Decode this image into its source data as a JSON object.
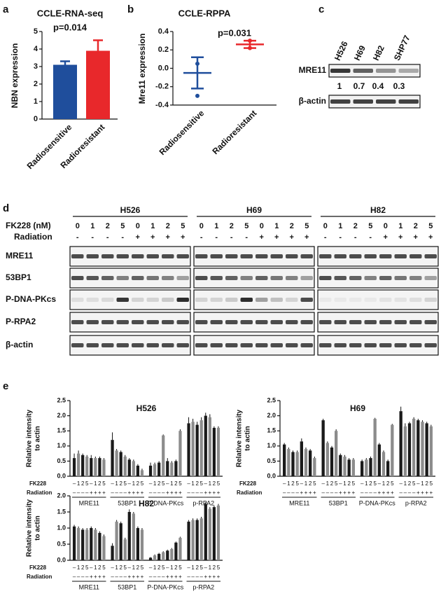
{
  "panel_labels": [
    "a",
    "b",
    "c",
    "d",
    "e"
  ],
  "chart_data": [
    {
      "type": "bar",
      "title": "CCLE-RNA-seq",
      "annotation": "p=0.014",
      "y_label": "NBN expression",
      "categories": [
        "Radiosensitive",
        "Radioresistant"
      ],
      "values": [
        3.1,
        3.9
      ],
      "errors": [
        0.2,
        0.6
      ],
      "colors": [
        "#1f4e9c",
        "#e8282b"
      ],
      "ylim": [
        0,
        5
      ],
      "yticks": [
        0,
        1,
        2,
        3,
        4,
        5
      ]
    },
    {
      "type": "dot",
      "title": "CCLE-RPPA",
      "annotation": "p=0.031",
      "y_label": "Mre11 expression",
      "categories": [
        "Radiosensitive",
        "Radioresistant"
      ],
      "means": [
        -0.05,
        0.26
      ],
      "errors": [
        0.17,
        0.04
      ],
      "points": [
        [
          0.05,
          -0.3
        ],
        [
          0.3,
          0.22
        ]
      ],
      "colors": [
        "#1f4e9c",
        "#e8282b"
      ],
      "ylim": [
        -0.4,
        0.4
      ],
      "yticks": [
        -0.4,
        -0.2,
        {
          "value": 0,
          "label": "0.0"
        },
        0.2,
        0.4
      ]
    },
    {
      "type": "grouped_bar",
      "title": "H526",
      "y_label": [
        "Relative intensity",
        "to actin"
      ],
      "groups": [
        "MRE11",
        "53BP1",
        "P-DNA-PKcs",
        "p-RPA2"
      ],
      "fk228_label": "FK228",
      "radiation_label": "Radiation",
      "fk228": [
        "–",
        1,
        2,
        5,
        "–",
        1,
        2,
        5
      ],
      "radiation": [
        "–",
        "–",
        "–",
        "–",
        "+",
        "+",
        "+",
        "+"
      ],
      "colors": [
        "#1a1a1a",
        "#8c8c8c",
        "#1a1a1a",
        "#8c8c8c",
        "#1a1a1a",
        "#8c8c8c",
        "#1a1a1a",
        "#8c8c8c"
      ],
      "values": [
        [
          0.6,
          0.75,
          0.7,
          0.65,
          0.6,
          0.6,
          0.6,
          0.55
        ],
        [
          1.2,
          0.85,
          0.8,
          0.65,
          0.55,
          0.5,
          0.35,
          0.2
        ],
        [
          0.35,
          0.4,
          0.45,
          1.35,
          0.5,
          0.45,
          0.5,
          1.5
        ],
        [
          1.75,
          1.8,
          1.7,
          1.85,
          2.0,
          1.95,
          1.6,
          1.6
        ]
      ],
      "errors": [
        [
          0.15,
          0.1,
          0.05,
          0.05,
          0.1,
          0.05,
          0.05,
          0.05
        ],
        [
          0.25,
          0.05,
          0.05,
          0.05,
          0.05,
          0.05,
          0.05,
          0.05
        ],
        [
          0.1,
          0.05,
          0.05,
          0.03,
          0.1,
          0.05,
          0.05,
          0.05
        ],
        [
          0.2,
          0.1,
          0.1,
          0.1,
          0.1,
          0.1,
          0.05,
          0.05
        ]
      ],
      "ylim": [
        0,
        2.5
      ],
      "yticks": [
        {
          "value": 0,
          "label": "0.0"
        },
        0.5,
        {
          "value": 1,
          "label": "1.0"
        },
        1.5,
        {
          "value": 2,
          "label": "2.0"
        },
        2.5
      ]
    },
    {
      "type": "grouped_bar",
      "title": "H69",
      "y_label": [
        "Relative intensity",
        "to actin"
      ],
      "groups": [
        "MRE11",
        "53BP1",
        "P-DNA-PKcs",
        "p-RPA2"
      ],
      "fk228_label": "FK228",
      "radiation_label": "Radiation",
      "fk228": [
        "–",
        1,
        2,
        5,
        "–",
        1,
        2,
        5
      ],
      "radiation": [
        "–",
        "–",
        "–",
        "–",
        "+",
        "+",
        "+",
        "+"
      ],
      "colors": [
        "#1a1a1a",
        "#8c8c8c",
        "#1a1a1a",
        "#8c8c8c",
        "#1a1a1a",
        "#8c8c8c",
        "#1a1a1a",
        "#8c8c8c"
      ],
      "values": [
        [
          1.05,
          0.9,
          0.8,
          0.8,
          1.15,
          0.9,
          0.85,
          0.6
        ],
        [
          1.85,
          1.1,
          0.95,
          1.5,
          0.7,
          0.65,
          0.55,
          0.55
        ],
        [
          0.5,
          0.55,
          0.6,
          1.9,
          1.05,
          0.8,
          0.5,
          1.7
        ],
        [
          2.15,
          1.65,
          1.75,
          1.9,
          1.85,
          1.8,
          1.75,
          1.65
        ]
      ],
      "errors": [
        [
          0.05,
          0.05,
          0.05,
          0.05,
          0.1,
          0.05,
          0.05,
          0.05
        ],
        [
          0.05,
          0.05,
          0.05,
          0.05,
          0.05,
          0.05,
          0.05,
          0.05
        ],
        [
          0.05,
          0.05,
          0.05,
          0.03,
          0.05,
          0.05,
          0.05,
          0.03
        ],
        [
          0.15,
          0.1,
          0.05,
          0.05,
          0.05,
          0.05,
          0.05,
          0.05
        ]
      ],
      "ylim": [
        0,
        2.5
      ],
      "yticks": [
        {
          "value": 0,
          "label": "0.0"
        },
        0.5,
        {
          "value": 1,
          "label": "1.0"
        },
        1.5,
        {
          "value": 2,
          "label": "2.0"
        },
        2.5
      ]
    },
    {
      "type": "grouped_bar",
      "title": "H82",
      "y_label": [
        "Relative intensity",
        "to actin"
      ],
      "groups": [
        "MRE11",
        "53BP1",
        "P-DNA-PKcs",
        "p-RPA2"
      ],
      "fk228_label": "FK228",
      "radiation_label": "Radiation",
      "fk228": [
        "–",
        1,
        2,
        5,
        "–",
        1,
        2,
        5
      ],
      "radiation": [
        "–",
        "–",
        "–",
        "–",
        "+",
        "+",
        "+",
        "+"
      ],
      "colors": [
        "#1a1a1a",
        "#8c8c8c",
        "#1a1a1a",
        "#8c8c8c",
        "#1a1a1a",
        "#8c8c8c",
        "#1a1a1a",
        "#8c8c8c"
      ],
      "values": [
        [
          1.05,
          1.0,
          0.95,
          0.95,
          1.0,
          0.95,
          0.85,
          0.75
        ],
        [
          0.45,
          1.2,
          1.15,
          0.65,
          1.5,
          1.45,
          1.0,
          0.95
        ],
        [
          0.08,
          0.15,
          0.2,
          0.25,
          0.3,
          0.35,
          0.55,
          0.7
        ],
        [
          1.2,
          1.25,
          1.25,
          1.3,
          1.75,
          1.6,
          1.65,
          1.7
        ]
      ],
      "errors": [
        [
          0.05,
          0.05,
          0.05,
          0.05,
          0.05,
          0.05,
          0.05,
          0.05
        ],
        [
          0.08,
          0.05,
          0.05,
          0.05,
          0.08,
          0.05,
          0.05,
          0.05
        ],
        [
          0.02,
          0.03,
          0.03,
          0.03,
          0.03,
          0.03,
          0.03,
          0.03
        ],
        [
          0.05,
          0.05,
          0.05,
          0.05,
          0.05,
          0.05,
          0.05,
          0.05
        ]
      ],
      "ylim": [
        0,
        2.0
      ],
      "yticks": [
        {
          "value": 0,
          "label": "0.0"
        },
        0.5,
        {
          "value": 1,
          "label": "1.0"
        },
        1.5,
        {
          "value": 2,
          "label": "2.0"
        }
      ]
    }
  ],
  "blot_c": {
    "lanes": [
      "H526",
      "H69",
      "H82",
      "SHP77"
    ],
    "rows": [
      "MRE11",
      "β-actin"
    ],
    "quantification": [
      1,
      0.7,
      0.4,
      0.3
    ]
  },
  "blot_d": {
    "groups": [
      "H526",
      "H69",
      "H82"
    ],
    "fk228_label": "FK228 (nM)",
    "fk228": [
      0,
      1,
      2,
      5,
      0,
      1,
      2,
      5
    ],
    "radiation_label": "Radiation",
    "radiation": [
      "-",
      "-",
      "-",
      "-",
      "+",
      "+",
      "+",
      "+"
    ],
    "rows": [
      "MRE11",
      "53BP1",
      "P-DNA-PKcs",
      "P-RPA2",
      "β-actin"
    ]
  }
}
